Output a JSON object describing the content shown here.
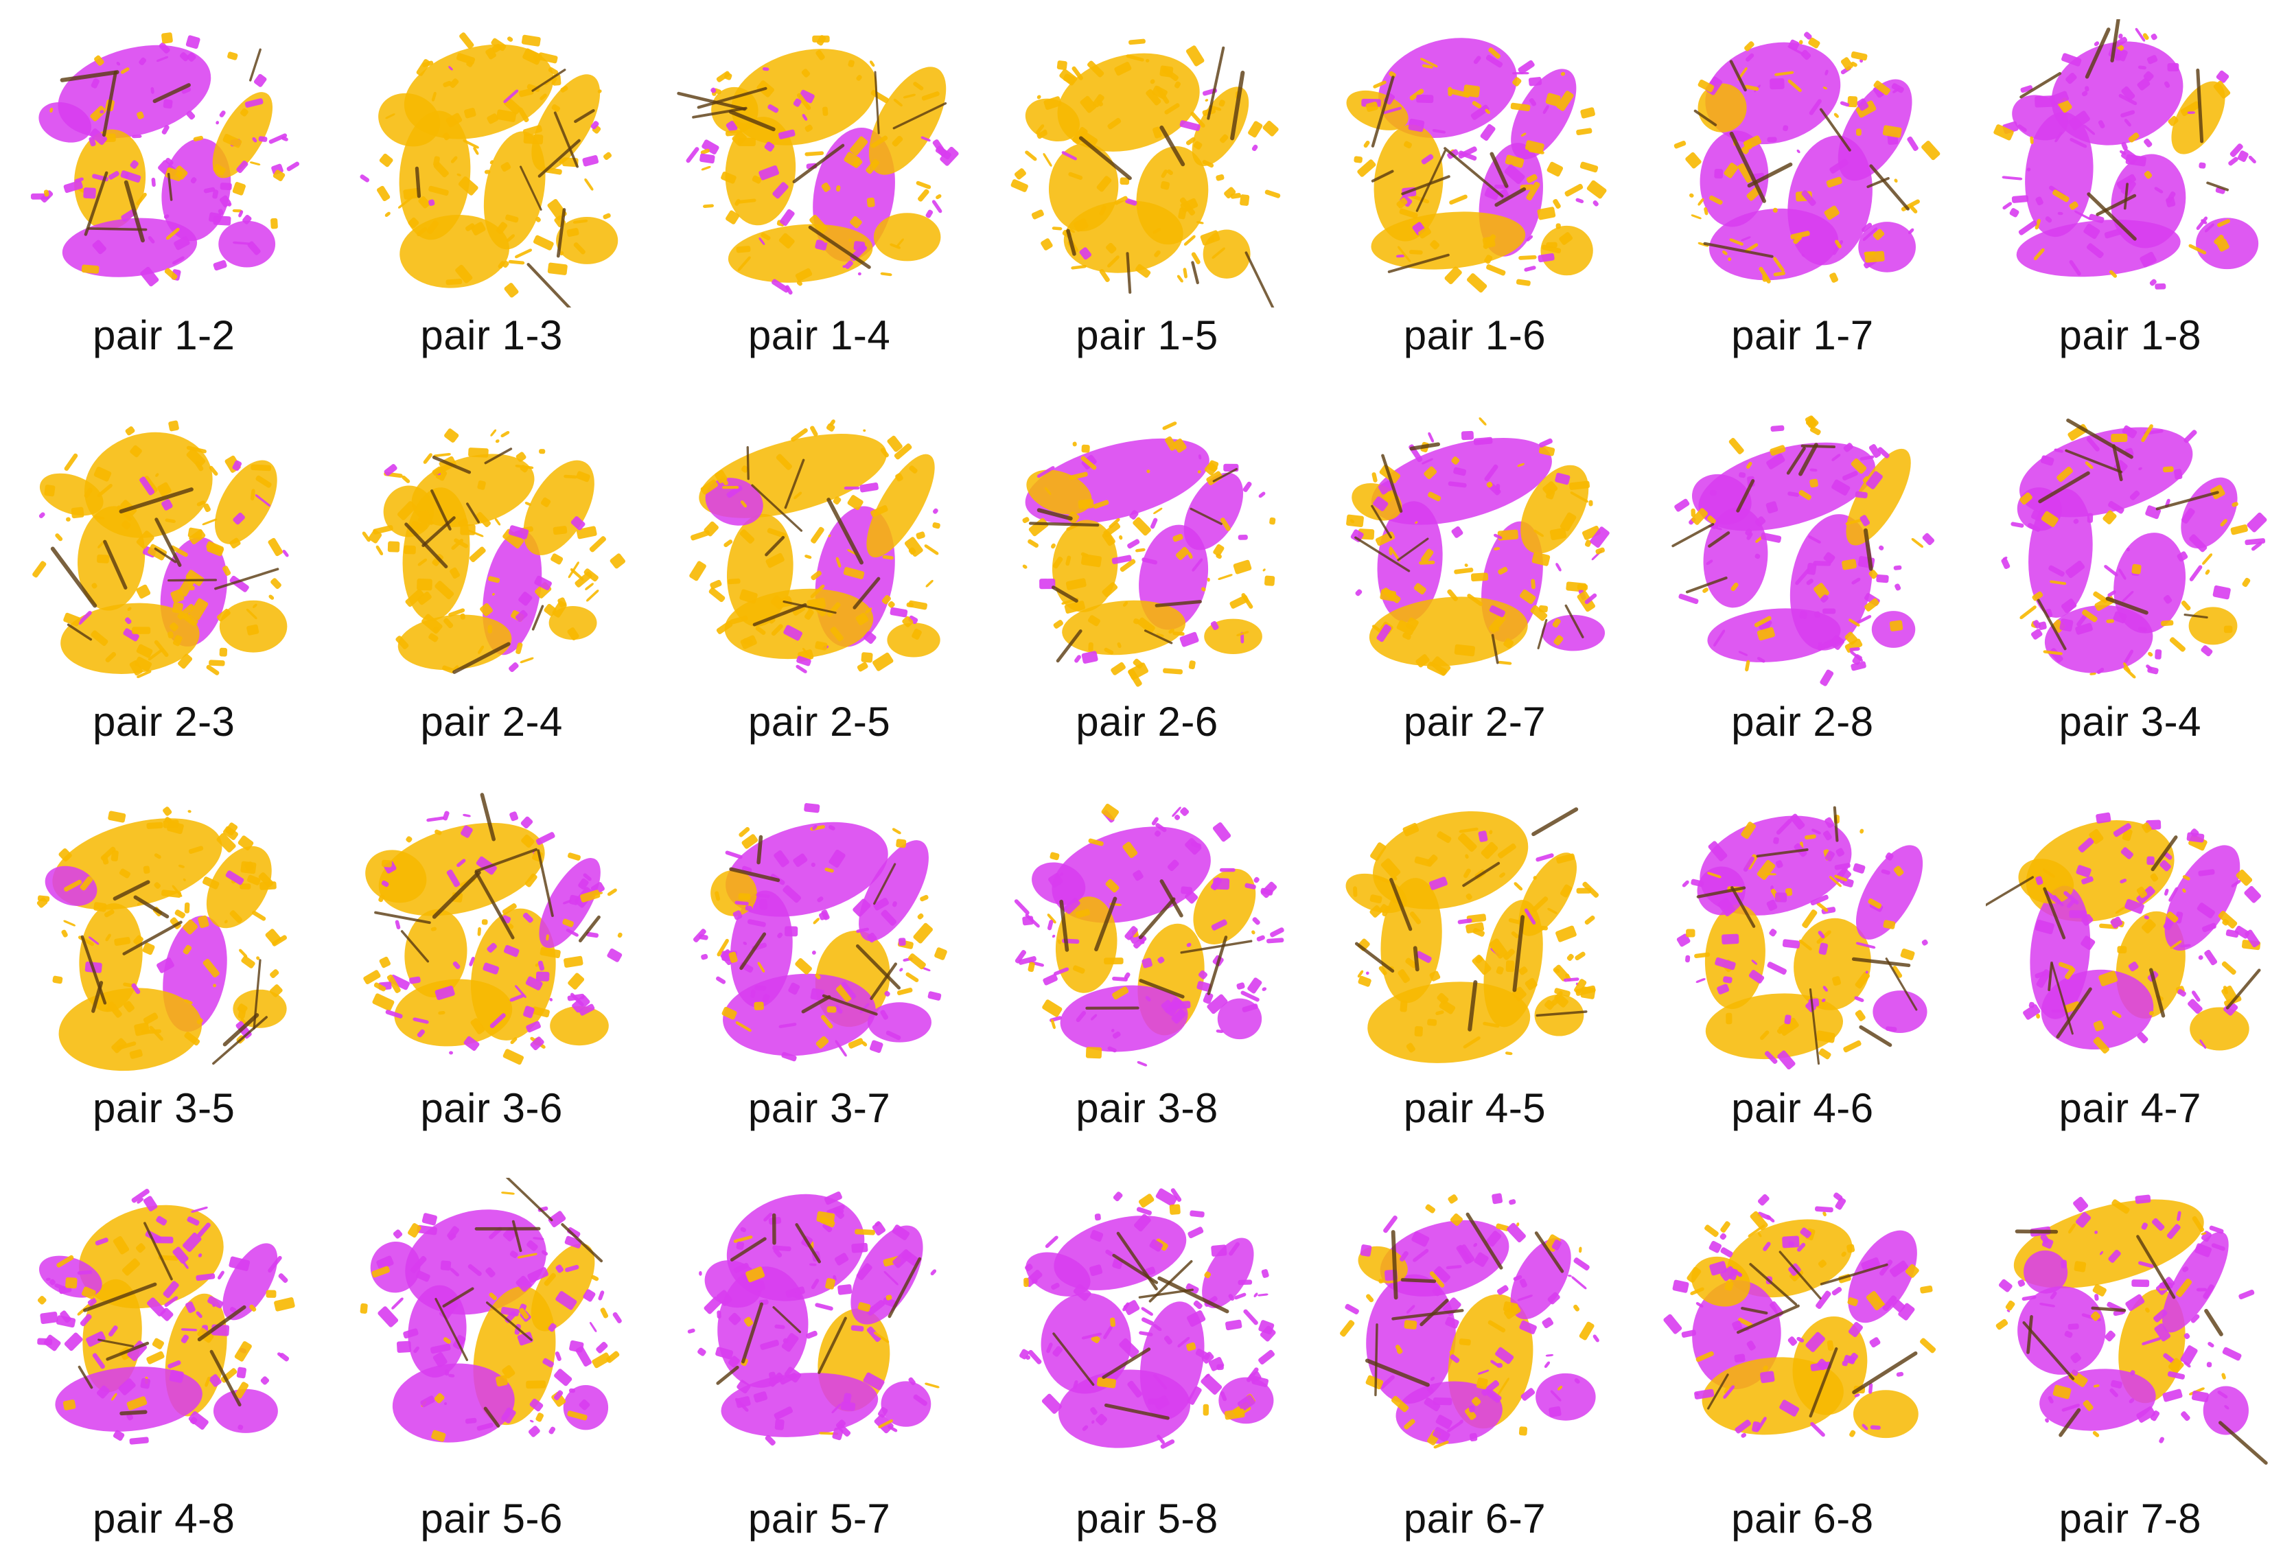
{
  "colors": {
    "source": "#d83cf0",
    "target": "#f7b800",
    "dark_edge": "#5a3a10"
  },
  "pairs": [
    {
      "label": "pair 1-2",
      "mix": 0.25
    },
    {
      "label": "pair 1-3",
      "mix": 0.85
    },
    {
      "label": "pair 1-4",
      "mix": 0.7
    },
    {
      "label": "pair 1-5",
      "mix": 0.95
    },
    {
      "label": "pair 1-6",
      "mix": 0.6
    },
    {
      "label": "pair 1-7",
      "mix": 0.6
    },
    {
      "label": "pair 1-8",
      "mix": 0.2
    },
    {
      "label": "pair 2-3",
      "mix": 0.85
    },
    {
      "label": "pair 2-4",
      "mix": 0.9
    },
    {
      "label": "pair 2-5",
      "mix": 0.9
    },
    {
      "label": "pair 2-6",
      "mix": 0.75
    },
    {
      "label": "pair 2-7",
      "mix": 0.7
    },
    {
      "label": "pair 2-8",
      "mix": 0.3
    },
    {
      "label": "pair 3-4",
      "mix": 0.35
    },
    {
      "label": "pair 3-5",
      "mix": 0.9
    },
    {
      "label": "pair 3-6",
      "mix": 0.4
    },
    {
      "label": "pair 3-7",
      "mix": 0.35
    },
    {
      "label": "pair 3-8",
      "mix": 0.2
    },
    {
      "label": "pair 4-5",
      "mix": 0.85
    },
    {
      "label": "pair 4-6",
      "mix": 0.4
    },
    {
      "label": "pair 4-7",
      "mix": 0.4
    },
    {
      "label": "pair 4-8",
      "mix": 0.2
    },
    {
      "label": "pair 5-6",
      "mix": 0.25
    },
    {
      "label": "pair 5-7",
      "mix": 0.2
    },
    {
      "label": "pair 5-8",
      "mix": 0.15
    },
    {
      "label": "pair 6-7",
      "mix": 0.3
    },
    {
      "label": "pair 6-8",
      "mix": 0.3
    },
    {
      "label": "pair 7-8",
      "mix": 0.25
    }
  ]
}
